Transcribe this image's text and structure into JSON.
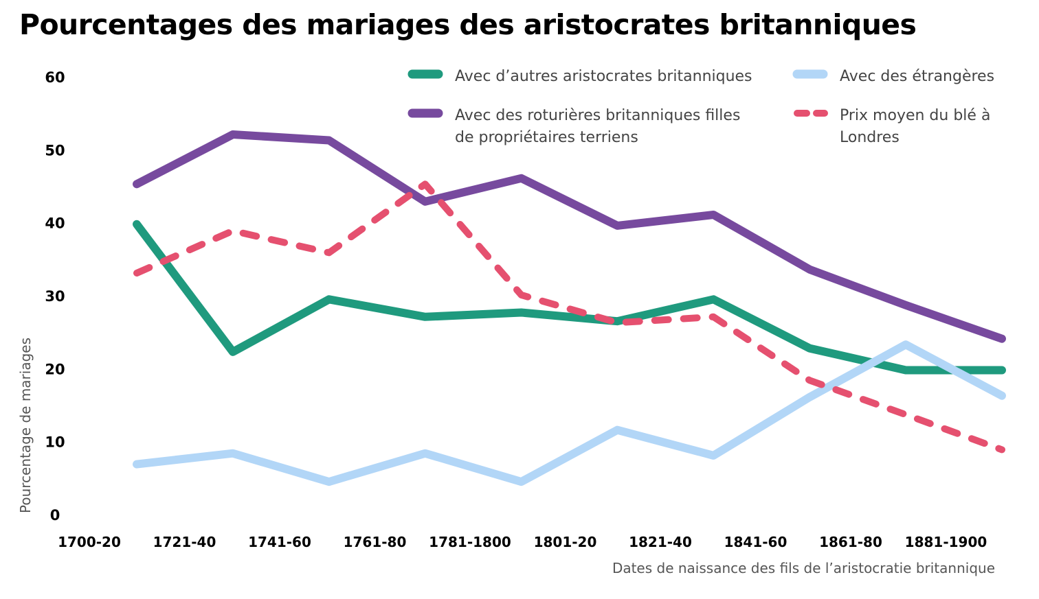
{
  "chart_data": {
    "type": "line",
    "title": "Pourcentages des mariages des aristocrates britanniques",
    "xlabel": "Dates de naissance des fils de l’aristocratie britannique",
    "ylabel": "Pourcentage de mariages",
    "ylim": [
      0,
      60
    ],
    "yticks": [
      "0",
      "10",
      "20",
      "30",
      "40",
      "50",
      "60"
    ],
    "x_tick_labels": [
      "1700-20",
      "1721-40",
      "1741-60",
      "1761-80",
      "1781-1800",
      "1801-20",
      "1821-40",
      "1841-60",
      "1861-80",
      "1881-1900"
    ],
    "grid": false,
    "legend_position": "top-right",
    "series": [
      {
        "name": "Avec d’autres aristocrates britanniques",
        "legend_lines": [
          "Avec d’autres aristocrates britanniques"
        ],
        "color": "#1f9a7e",
        "style": "solid",
        "x": [
          1710,
          1730,
          1750,
          1770,
          1790,
          1810,
          1830,
          1850,
          1870,
          1890
        ],
        "values": [
          39.8,
          22.3,
          29.5,
          27.1,
          27.7,
          26.5,
          29.5,
          22.8,
          19.8,
          19.8
        ]
      },
      {
        "name": "Avec des étrangères",
        "legend_lines": [
          "Avec des étrangères"
        ],
        "color": "#b2d6f7",
        "style": "solid",
        "x": [
          1710,
          1730,
          1750,
          1770,
          1790,
          1810,
          1830,
          1850,
          1870,
          1890
        ],
        "values": [
          6.9,
          8.4,
          4.5,
          8.4,
          4.5,
          11.6,
          8.1,
          16.1,
          23.3,
          16.3
        ]
      },
      {
        "name": "Avec des roturières britanniques filles de propriétaires terriens",
        "legend_lines": [
          "Avec des roturières britanniques filles",
          "de propriétaires terriens"
        ],
        "color": "#774a9e",
        "style": "solid",
        "x": [
          1710,
          1730,
          1750,
          1770,
          1790,
          1810,
          1830,
          1850,
          1870,
          1890
        ],
        "values": [
          45.3,
          52.1,
          51.3,
          42.9,
          46.1,
          39.6,
          41.1,
          33.6,
          28.7,
          24.1
        ]
      },
      {
        "name": "Prix moyen du blé à Londres",
        "legend_lines": [
          "Prix moyen du blé à",
          "Londres"
        ],
        "color": "#e5506f",
        "style": "dashed",
        "x": [
          1710,
          1730,
          1750,
          1770,
          1790,
          1810,
          1830,
          1850,
          1870,
          1890
        ],
        "values": [
          33.1,
          38.9,
          35.9,
          45.3,
          30.1,
          26.3,
          27.1,
          18.4,
          13.7,
          8.9
        ]
      }
    ]
  }
}
